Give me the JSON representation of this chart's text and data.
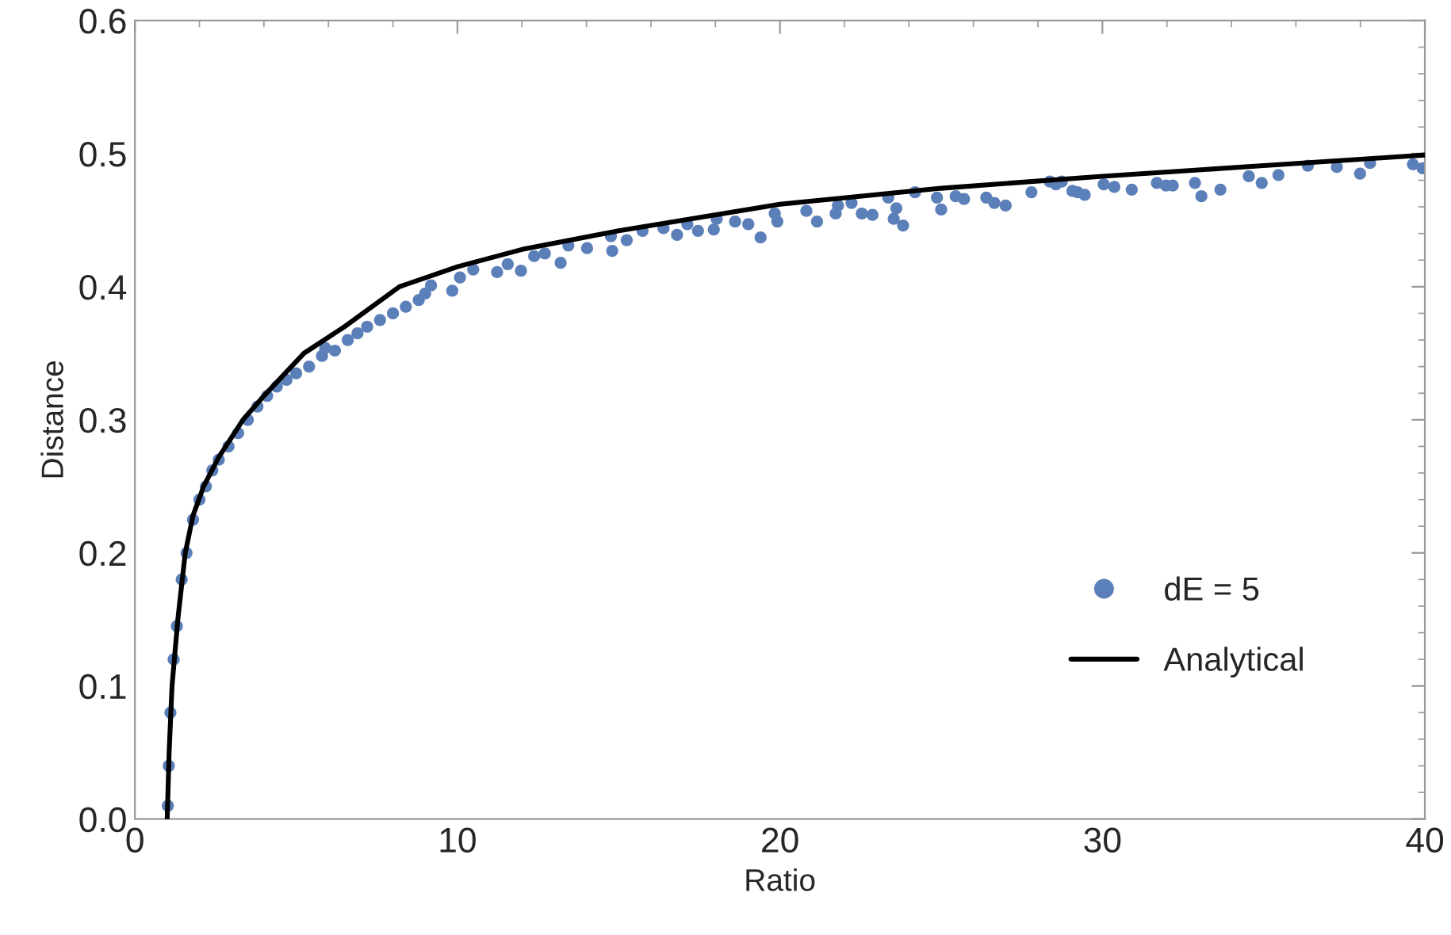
{
  "chart_data": {
    "type": "scatter",
    "xlabel": "Ratio",
    "ylabel": "Distance",
    "xlim": [
      0,
      40
    ],
    "ylim": [
      0,
      0.6
    ],
    "xticks": [
      0,
      10,
      20,
      30,
      40
    ],
    "yticks": [
      {
        "value": 0,
        "label": "0.0"
      },
      0.1,
      0.2,
      0.3,
      0.4,
      0.5,
      0.6
    ],
    "grid": false,
    "legend": "bottom right",
    "series": [
      {
        "name": "dE = 5",
        "marker": "circle",
        "color": "#5b7fb8",
        "x": [
          1.02,
          1.05,
          1.1,
          1.2,
          1.3,
          1.45,
          1.6,
          1.8,
          2.0,
          2.2,
          2.4,
          2.6,
          2.9,
          3.2,
          3.5,
          3.8,
          4.1,
          4.4,
          4.7,
          5.0,
          5.4,
          5.8,
          5.9,
          6.2,
          6.6,
          6.9,
          7.2,
          7.6,
          8.0,
          8.4,
          8.8,
          9.0,
          9.18,
          9.84,
          10.08,
          10.49,
          11.23,
          11.56,
          11.97,
          12.38,
          12.71,
          13.2,
          13.44,
          14.02,
          14.76,
          14.8,
          15.25,
          15.74,
          16.39,
          16.81,
          17.13,
          17.46,
          17.95,
          18.04,
          18.61,
          19.02,
          19.4,
          19.84,
          19.92,
          20.82,
          21.15,
          21.73,
          21.8,
          22.22,
          22.54,
          22.87,
          23.36,
          23.53,
          23.61,
          23.82,
          24.19,
          24.87,
          25.0,
          25.45,
          25.71,
          26.4,
          26.65,
          27.0,
          27.8,
          28.37,
          28.56,
          28.74,
          29.07,
          29.23,
          29.45,
          30.04,
          30.37,
          30.91,
          31.69,
          31.97,
          32.18,
          32.87,
          33.07,
          33.66,
          34.54,
          34.94,
          35.46,
          36.37,
          37.27,
          37.99,
          38.3,
          39.63,
          39.93
        ],
        "values": [
          0.01,
          0.04,
          0.08,
          0.12,
          0.145,
          0.18,
          0.2,
          0.225,
          0.24,
          0.25,
          0.262,
          0.27,
          0.28,
          0.29,
          0.3,
          0.31,
          0.318,
          0.325,
          0.33,
          0.335,
          0.34,
          0.348,
          0.354,
          0.352,
          0.36,
          0.365,
          0.37,
          0.375,
          0.38,
          0.385,
          0.39,
          0.395,
          0.401,
          0.397,
          0.407,
          0.413,
          0.411,
          0.417,
          0.412,
          0.423,
          0.425,
          0.418,
          0.431,
          0.429,
          0.438,
          0.427,
          0.435,
          0.442,
          0.444,
          0.439,
          0.447,
          0.442,
          0.443,
          0.451,
          0.449,
          0.447,
          0.437,
          0.455,
          0.449,
          0.457,
          0.449,
          0.455,
          0.461,
          0.463,
          0.455,
          0.454,
          0.467,
          0.451,
          0.459,
          0.446,
          0.471,
          0.467,
          0.458,
          0.468,
          0.466,
          0.467,
          0.463,
          0.461,
          0.471,
          0.479,
          0.477,
          0.479,
          0.472,
          0.471,
          0.469,
          0.477,
          0.475,
          0.473,
          0.478,
          0.476,
          0.476,
          0.478,
          0.468,
          0.473,
          0.483,
          0.478,
          0.484,
          0.491,
          0.49,
          0.485,
          0.493,
          0.492,
          0.489
        ]
      },
      {
        "name": "Analytical",
        "type": "line",
        "line_style": "solid",
        "color": "#000000",
        "x": [
          1,
          1.06,
          1.15,
          1.33,
          1.56,
          1.8,
          2.13,
          2.6,
          3.35,
          4,
          5.24,
          6.5,
          8.2,
          10,
          12,
          15,
          20,
          25,
          30,
          35,
          40
        ],
        "values": [
          0,
          0.05,
          0.1,
          0.15,
          0.2,
          0.228,
          0.25,
          0.272,
          0.3,
          0.318,
          0.35,
          0.37,
          0.4,
          0.415,
          0.428,
          0.442,
          0.462,
          0.474,
          0.483,
          0.491,
          0.499
        ]
      }
    ]
  }
}
